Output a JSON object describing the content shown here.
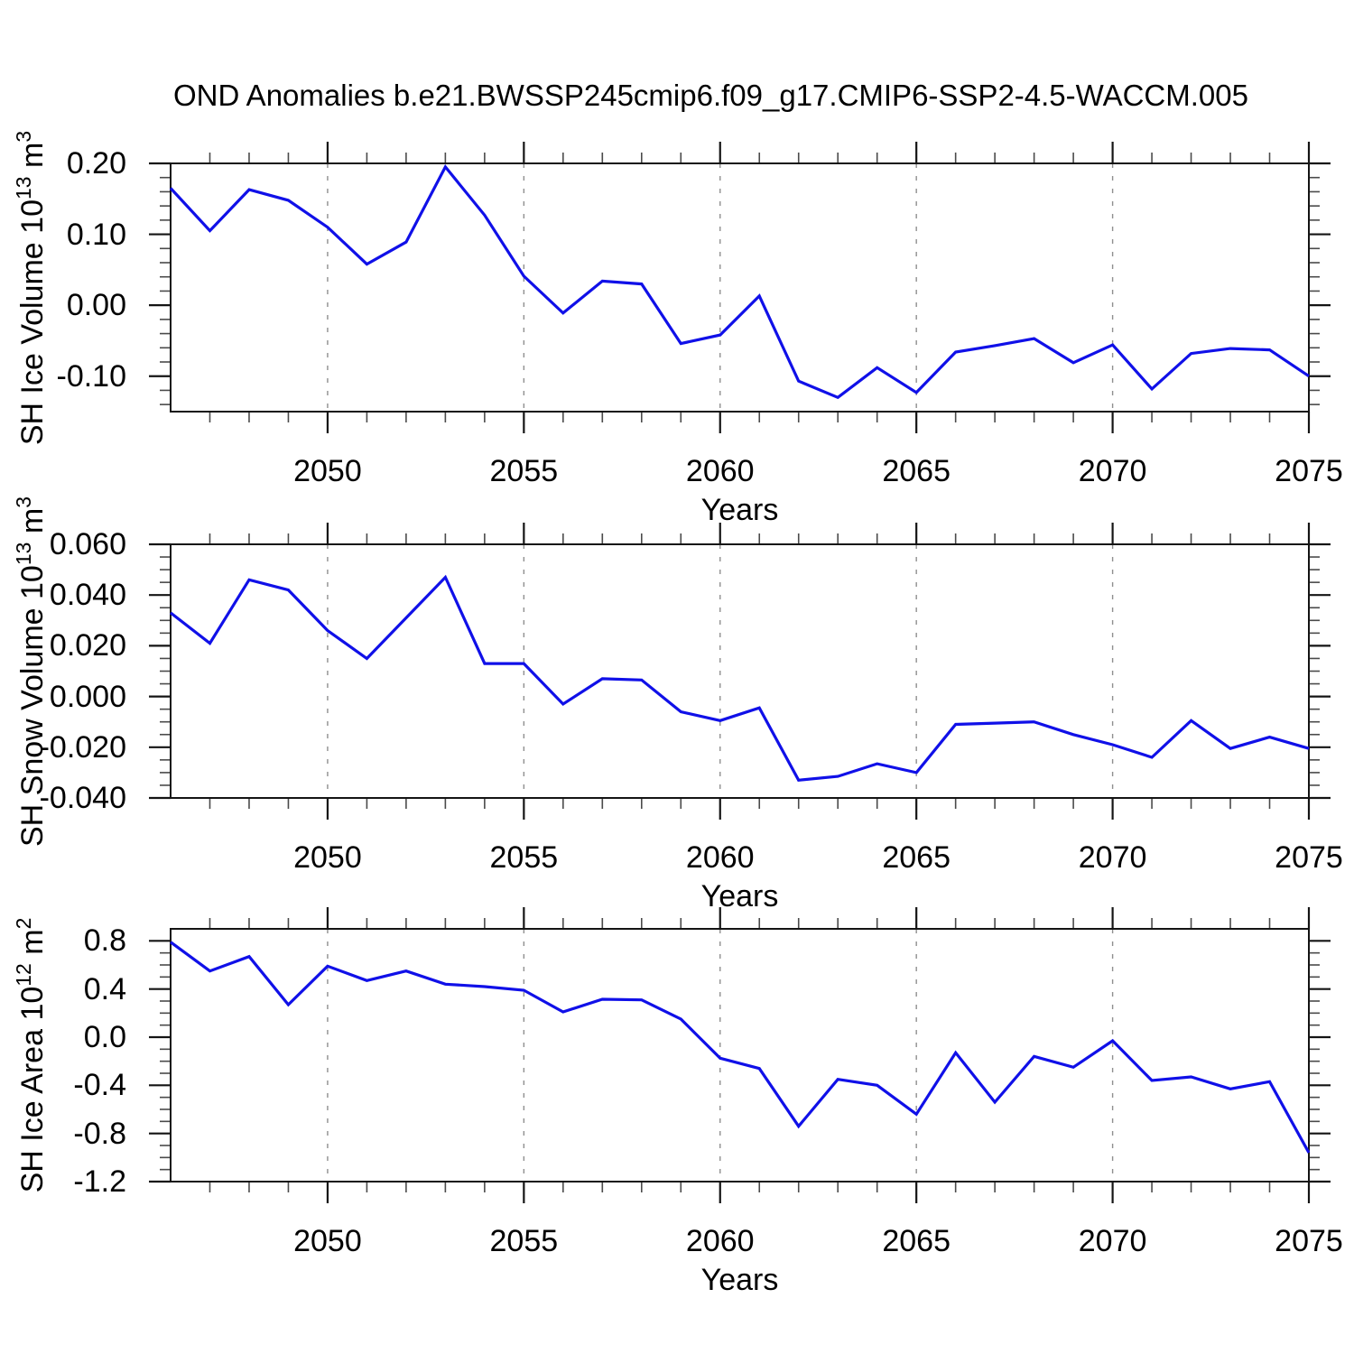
{
  "title": "OND Anomalies b.e21.BWSSP245cmip6.f09_g17.CMIP6-SSP2-4.5-WACCM.005",
  "colors": {
    "line": "#1010e8",
    "grid": "#8f8f8f",
    "frame": "#141414",
    "minor_tick": "#4a4a4a",
    "text": "#000000",
    "background": "#ffffff"
  },
  "chart_data": [
    {
      "type": "line",
      "name": "sh-ice-volume",
      "ylabel_parts": [
        {
          "t": "SH Ice Volume 10"
        },
        {
          "t": "13",
          "sup": true
        },
        {
          "t": " m"
        },
        {
          "t": "3",
          "sup": true
        }
      ],
      "xlabel": "Years",
      "x": [
        2046,
        2047,
        2048,
        2049,
        2050,
        2051,
        2052,
        2053,
        2054,
        2055,
        2056,
        2057,
        2058,
        2059,
        2060,
        2061,
        2062,
        2063,
        2064,
        2065,
        2066,
        2067,
        2068,
        2069,
        2070,
        2071,
        2072,
        2073,
        2074,
        2075
      ],
      "values": [
        0.165,
        0.105,
        0.163,
        0.148,
        0.11,
        0.058,
        0.089,
        0.195,
        0.127,
        0.041,
        -0.011,
        0.034,
        0.03,
        -0.054,
        -0.042,
        0.013,
        -0.107,
        -0.13,
        -0.088,
        -0.123,
        -0.066,
        -0.057,
        -0.047,
        -0.081,
        -0.056,
        -0.118,
        -0.068,
        -0.061,
        -0.063,
        -0.1
      ],
      "xlim": [
        2046,
        2075
      ],
      "ylim": [
        -0.15,
        0.2
      ],
      "yticks": [
        {
          "v": 0.2,
          "label": "0.20"
        },
        {
          "v": 0.1,
          "label": "0.10"
        },
        {
          "v": 0.0,
          "label": "0.00"
        },
        {
          "v": -0.1,
          "label": "-0.10"
        }
      ],
      "y_minor_step": 0.02,
      "xticks": [
        {
          "v": 2050,
          "label": "2050"
        },
        {
          "v": 2055,
          "label": "2055"
        },
        {
          "v": 2060,
          "label": "2060"
        },
        {
          "v": 2065,
          "label": "2065"
        },
        {
          "v": 2070,
          "label": "2070"
        },
        {
          "v": 2075,
          "label": "2075"
        }
      ],
      "x_minor_step": 1,
      "grid_x": [
        2050,
        2055,
        2060,
        2065,
        2070
      ]
    },
    {
      "type": "line",
      "name": "sh-snow-volume",
      "ylabel_parts": [
        {
          "t": "SH Snow Volume 10"
        },
        {
          "t": "13",
          "sup": true
        },
        {
          "t": " m"
        },
        {
          "t": "3",
          "sup": true
        }
      ],
      "xlabel": "Years",
      "x": [
        2046,
        2047,
        2048,
        2049,
        2050,
        2051,
        2052,
        2053,
        2054,
        2055,
        2056,
        2057,
        2058,
        2059,
        2060,
        2061,
        2062,
        2063,
        2064,
        2065,
        2066,
        2067,
        2068,
        2069,
        2070,
        2071,
        2072,
        2073,
        2074,
        2075
      ],
      "values": [
        0.033,
        0.021,
        0.046,
        0.042,
        0.026,
        0.015,
        0.031,
        0.047,
        0.013,
        0.013,
        -0.003,
        0.007,
        0.0065,
        -0.006,
        -0.0095,
        -0.0045,
        -0.033,
        -0.0315,
        -0.0265,
        -0.03,
        -0.011,
        -0.0105,
        -0.01,
        -0.015,
        -0.019,
        -0.024,
        -0.0095,
        -0.0205,
        -0.016,
        -0.0205
      ],
      "xlim": [
        2046,
        2075
      ],
      "ylim": [
        -0.04,
        0.06
      ],
      "yticks": [
        {
          "v": 0.06,
          "label": "0.060"
        },
        {
          "v": 0.04,
          "label": "0.040"
        },
        {
          "v": 0.02,
          "label": "0.020"
        },
        {
          "v": 0.0,
          "label": "0.000"
        },
        {
          "v": -0.02,
          "label": "-0.020"
        },
        {
          "v": -0.04,
          "label": "-0.040"
        }
      ],
      "y_minor_step": 0.005,
      "xticks": [
        {
          "v": 2050,
          "label": "2050"
        },
        {
          "v": 2055,
          "label": "2055"
        },
        {
          "v": 2060,
          "label": "2060"
        },
        {
          "v": 2065,
          "label": "2065"
        },
        {
          "v": 2070,
          "label": "2070"
        },
        {
          "v": 2075,
          "label": "2075"
        }
      ],
      "x_minor_step": 1,
      "grid_x": [
        2050,
        2055,
        2060,
        2065,
        2070
      ]
    },
    {
      "type": "line",
      "name": "sh-ice-area",
      "ylabel_parts": [
        {
          "t": "SH Ice Area 10"
        },
        {
          "t": "12",
          "sup": true
        },
        {
          "t": " m"
        },
        {
          "t": "2",
          "sup": true
        }
      ],
      "xlabel": "Years",
      "x": [
        2046,
        2047,
        2048,
        2049,
        2050,
        2051,
        2052,
        2053,
        2054,
        2055,
        2056,
        2057,
        2058,
        2059,
        2060,
        2061,
        2062,
        2063,
        2064,
        2065,
        2066,
        2067,
        2068,
        2069,
        2070,
        2071,
        2072,
        2073,
        2074,
        2075
      ],
      "values": [
        0.79,
        0.55,
        0.67,
        0.27,
        0.59,
        0.47,
        0.55,
        0.44,
        0.42,
        0.39,
        0.21,
        0.315,
        0.31,
        0.15,
        -0.175,
        -0.26,
        -0.74,
        -0.35,
        -0.4,
        -0.64,
        -0.13,
        -0.54,
        -0.16,
        -0.25,
        -0.03,
        -0.36,
        -0.33,
        -0.43,
        -0.37,
        -0.96
      ],
      "xlim": [
        2046,
        2075
      ],
      "ylim": [
        -1.2,
        0.9
      ],
      "yticks": [
        {
          "v": 0.8,
          "label": "0.8"
        },
        {
          "v": 0.4,
          "label": "0.4"
        },
        {
          "v": 0.0,
          "label": "0.0"
        },
        {
          "v": -0.4,
          "label": "-0.4"
        },
        {
          "v": -0.8,
          "label": "-0.8"
        },
        {
          "v": -1.2,
          "label": "-1.2"
        }
      ],
      "y_minor_step": 0.1,
      "xticks": [
        {
          "v": 2050,
          "label": "2050"
        },
        {
          "v": 2055,
          "label": "2055"
        },
        {
          "v": 2060,
          "label": "2060"
        },
        {
          "v": 2065,
          "label": "2065"
        },
        {
          "v": 2070,
          "label": "2070"
        },
        {
          "v": 2075,
          "label": "2075"
        }
      ],
      "x_minor_step": 1,
      "grid_x": [
        2050,
        2055,
        2060,
        2065,
        2070
      ]
    }
  ]
}
